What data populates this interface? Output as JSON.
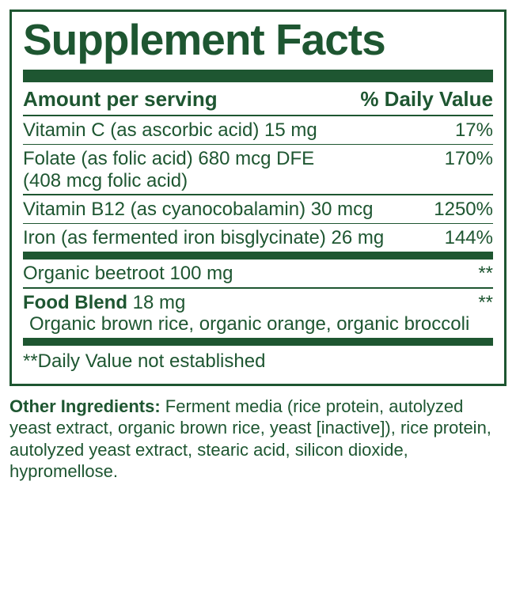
{
  "colors": {
    "primary": "#1e5631",
    "background": "#ffffff"
  },
  "panel": {
    "title": "Supplement Facts",
    "header_left": "Amount per serving",
    "header_right": "% Daily Value",
    "rows": [
      {
        "name": "Vitamin C (as ascorbic acid) 15 mg",
        "dv": "17%"
      },
      {
        "name": "Folate (as folic acid) 680 mcg DFE",
        "sub": "(408 mcg folic acid)",
        "dv": "170%"
      },
      {
        "name": "Vitamin B12 (as cyanocobalamin) 30 mcg",
        "dv": "1250%"
      },
      {
        "name": "Iron (as fermented iron bisglycinate) 26 mg",
        "dv": "144%"
      }
    ],
    "section2": [
      {
        "name": "Organic beetroot 100 mg",
        "dv": "**"
      }
    ],
    "blend": {
      "label": "Food Blend",
      "amount": " 18 mg",
      "dv": "**",
      "items": "Organic brown rice, organic orange, organic broccoli"
    },
    "footnote": "**Daily Value not established"
  },
  "other": {
    "label": "Other Ingredients: ",
    "text": "Ferment media (rice protein, autolyzed yeast extract, organic brown rice, yeast [inactive]), rice protein, autolyzed yeast extract, stearic acid, silicon dioxide, hypromellose."
  }
}
